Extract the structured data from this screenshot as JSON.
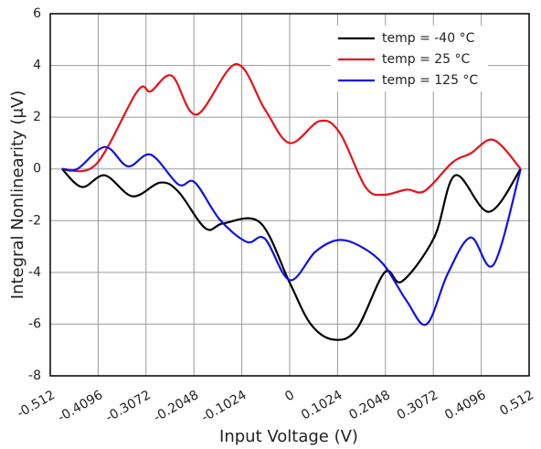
{
  "chart_data": {
    "type": "line",
    "xlabel": "Input Voltage (V)",
    "ylabel": "Integral Nonlinearity (μV)",
    "xlim": [
      -0.512,
      0.512
    ],
    "ylim": [
      -8,
      6
    ],
    "xticks": [
      -0.512,
      -0.4096,
      -0.3072,
      -0.2048,
      -0.1024,
      0,
      0.1024,
      0.2048,
      0.3072,
      0.4096,
      0.512
    ],
    "yticks": [
      -8,
      -6,
      -4,
      -2,
      0,
      2,
      4,
      6
    ],
    "grid": true,
    "legend": "upper right",
    "series": [
      {
        "name": "temp = -40 °C",
        "color": "#000000",
        "x": [
          -0.487,
          -0.444,
          -0.395,
          -0.336,
          -0.277,
          -0.238,
          -0.18,
          -0.141,
          -0.063,
          0,
          0.045,
          0.094,
          0.143,
          0.203,
          0.24,
          0.309,
          0.354,
          0.426,
          0.494
        ],
        "values": [
          0,
          -0.7,
          -0.25,
          -1.06,
          -0.53,
          -0.88,
          -2.3,
          -2.1,
          -2.08,
          -4.4,
          -6.0,
          -6.6,
          -6.2,
          -4.0,
          -4.35,
          -2.65,
          -0.25,
          -1.66,
          0
        ]
      },
      {
        "name": "temp = 25 °C",
        "color": "#e8101a",
        "x": [
          -0.487,
          -0.414,
          -0.326,
          -0.297,
          -0.252,
          -0.199,
          -0.115,
          -0.053,
          0,
          0.064,
          0.107,
          0.162,
          0.201,
          0.25,
          0.289,
          0.348,
          0.387,
          0.436,
          0.494
        ],
        "values": [
          0,
          0.18,
          3.0,
          3.0,
          3.6,
          2.1,
          4.05,
          2.3,
          1.0,
          1.85,
          1.4,
          -0.7,
          -1.0,
          -0.8,
          -0.85,
          0.25,
          0.6,
          1.12,
          0
        ]
      },
      {
        "name": "temp = 125 °C",
        "color": "#1010e8",
        "x": [
          -0.487,
          -0.454,
          -0.395,
          -0.346,
          -0.297,
          -0.238,
          -0.203,
          -0.15,
          -0.092,
          -0.053,
          0,
          0.055,
          0.104,
          0.152,
          0.201,
          0.25,
          0.293,
          0.338,
          0.387,
          0.436,
          0.494
        ],
        "values": [
          0,
          0,
          0.85,
          0.1,
          0.55,
          -0.6,
          -0.52,
          -1.95,
          -2.82,
          -2.7,
          -4.3,
          -3.2,
          -2.75,
          -3.0,
          -3.7,
          -5.1,
          -6.0,
          -4.05,
          -2.65,
          -3.7,
          0
        ]
      }
    ]
  }
}
